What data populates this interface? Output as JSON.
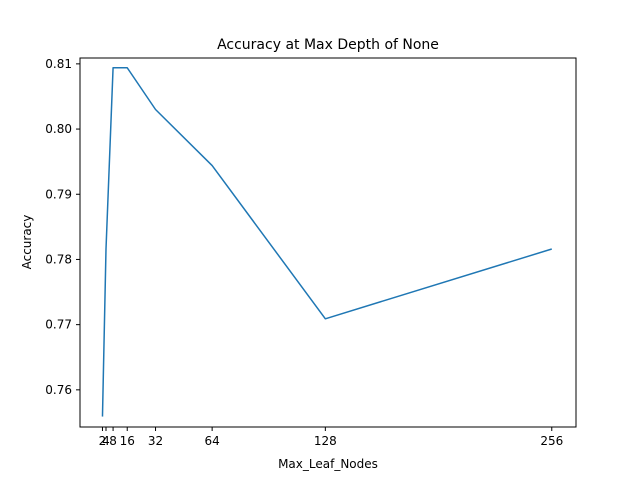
{
  "chart_data": {
    "type": "line",
    "title": "Accuracy at Max Depth of None",
    "xlabel": "Max_Leaf_Nodes",
    "ylabel": "Accuracy",
    "xlim": [
      -10.7,
      269.7
    ],
    "ylim": [
      0.7543,
      0.8109
    ],
    "x_ticks": [
      2,
      4,
      8,
      16,
      32,
      64,
      128,
      256
    ],
    "x_tick_labels": [
      "2",
      "4",
      "8",
      "16",
      "32",
      "64",
      "128",
      "256"
    ],
    "y_ticks": [
      0.76,
      0.77,
      0.78,
      0.79,
      0.8,
      0.81
    ],
    "y_tick_labels": [
      "0.76",
      "0.77",
      "0.78",
      "0.79",
      "0.80",
      "0.81"
    ],
    "grid": false,
    "series": [
      {
        "color": "#1f77b4",
        "x": [
          2,
          4,
          8,
          16,
          32,
          64,
          128,
          256
        ],
        "y": [
          0.7559,
          0.7816,
          0.8094,
          0.8094,
          0.803,
          0.7944,
          0.7709,
          0.7816
        ]
      }
    ]
  }
}
